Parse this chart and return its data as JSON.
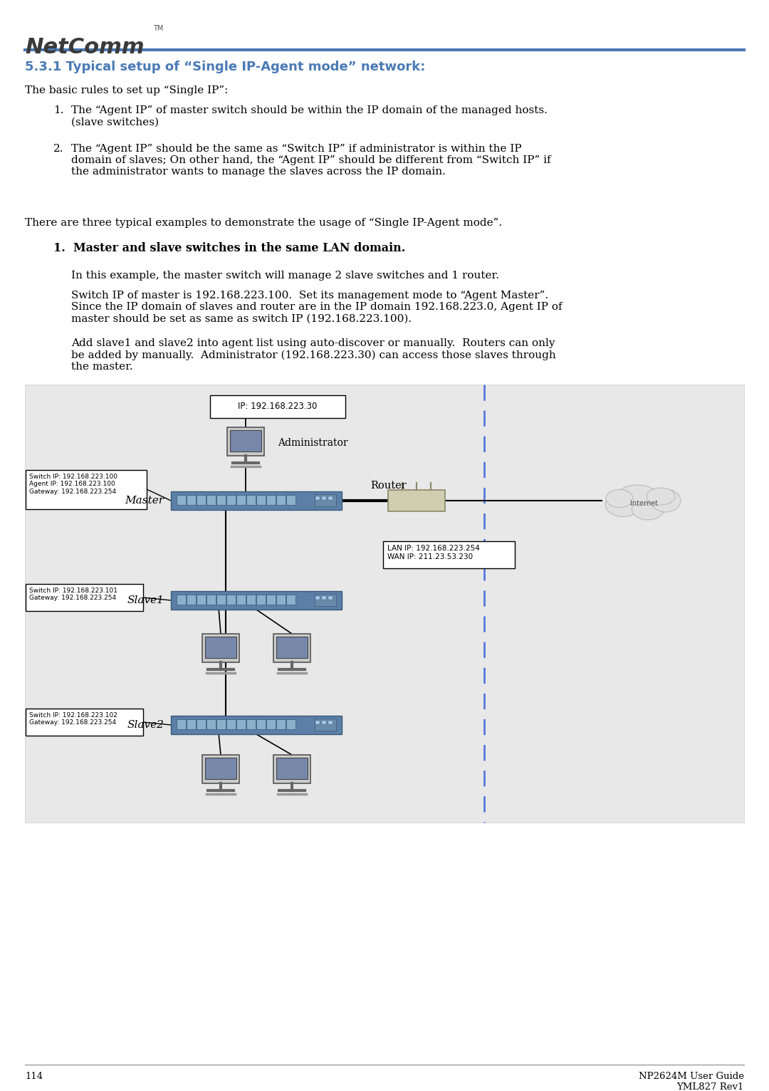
{
  "page_width": 10.8,
  "page_height": 15.32,
  "bg_color": "#ffffff",
  "header_line_color": "#4a7ab5",
  "section_title": "5.3.1 Typical setup of “Single IP-Agent mode” network:",
  "section_title_color": "#4a7ab5",
  "para1": "The basic rules to set up “Single IP”:",
  "item1_num": "1.",
  "item1_text": "The “Agent IP” of master switch should be within the IP domain of the managed hosts.\n(slave switches)",
  "item2_num": "2.",
  "item2_text": "The “Agent IP” should be the same as “Switch IP” if administrator is within the IP\ndomain of slaves; On other hand, the “Agent IP” should be different from “Switch IP” if\nthe administrator wants to manage the slaves across the IP domain.",
  "para2": "There are three typical examples to demonstrate the usage of “Single IP-Agent mode”.",
  "bold_item": "1.  Master and slave switches in the same LAN domain.",
  "sub_para1": "In this example, the master switch will manage 2 slave switches and 1 router.",
  "sub_para2": "Switch IP of master is 192.168.223.100.  Set its management mode to “Agent Master”.\nSince the IP domain of slaves and router are in the IP domain 192.168.223.0, Agent IP of\nmaster should be set as same as switch IP (192.168.223.100).",
  "sub_para3": "Add slave1 and slave2 into agent list using auto-discover or manually.  Routers can only\nbe added by manually.  Administrator (192.168.223.30) can access those slaves through\nthe master.",
  "footer_page": "114",
  "footer_right": "NP2624M User Guide\nYML827 Rev1",
  "switch_fc": "#5b7fa6",
  "switch_ec": "#3a5a7a",
  "port_fc": "#8ab0cc",
  "port_ec": "#3a5a7a",
  "right_panel_fc": "#6a8aaa",
  "diagram_bg": "#e8e8e8",
  "dashed_color": "#5577dd",
  "admin_box_text": "IP: 192.168.223.30",
  "master_label": "Master",
  "slave1_label": "Slave1",
  "slave2_label": "Slave2",
  "router_label": "Router",
  "internet_label": "Internet",
  "admin_label": "Administrator",
  "master_info": "Switch IP: 192.168.223.100\nAgent IP: 192.168.223.100\nGateway: 192.168.223.254",
  "slave1_info": "Switch IP: 192.168.223.101\nGateway: 192.168.223.254",
  "slave2_info": "Switch IP: 192.168.223.102\nGateway: 192.168.223.254",
  "router_info": "LAN IP: 192.168.223.254\nWAN IP: 211.23.53.230"
}
